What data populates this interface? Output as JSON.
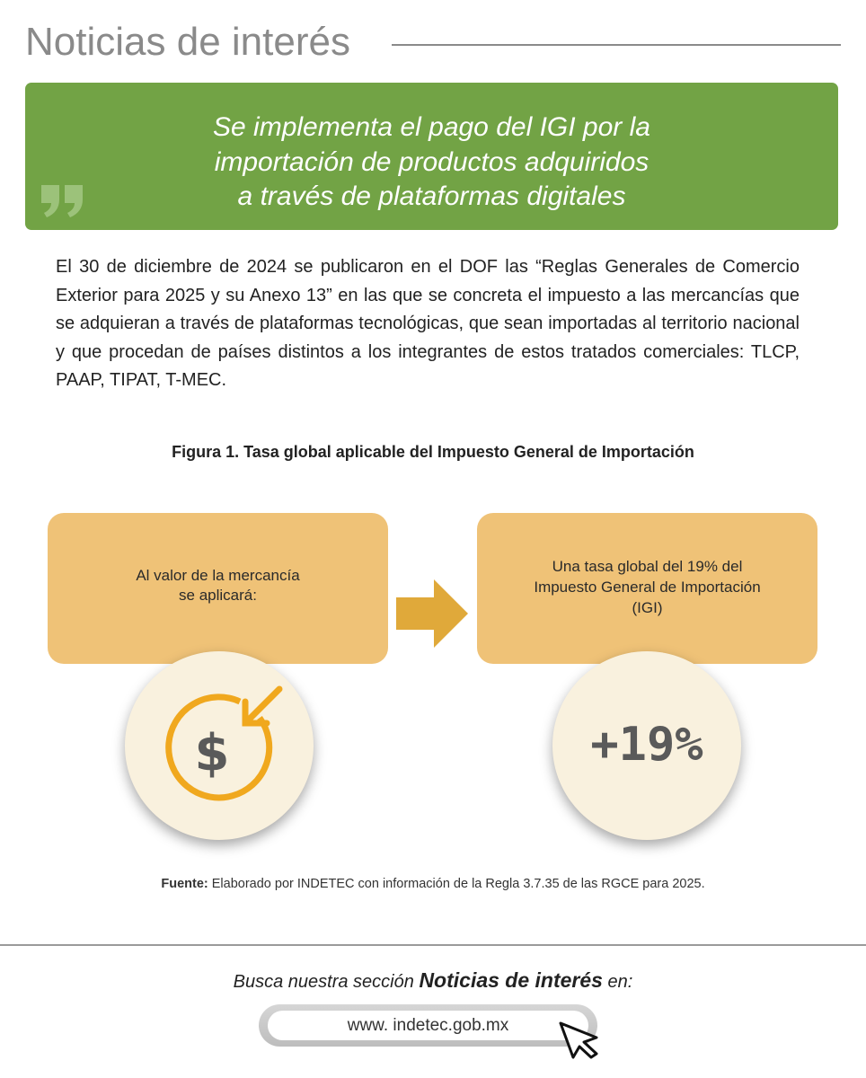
{
  "header": {
    "title": "Noticias de interés"
  },
  "banner": {
    "lines": [
      "Se implementa el pago del IGI por la",
      "importación de productos adquiridos",
      "a través de plataformas digitales"
    ]
  },
  "body": {
    "paragraph": "El 30 de diciembre de 2024 se publicaron en el DOF las “Reglas Generales de Comercio Exterior para 2025 y su Anexo 13” en las que se concreta el impuesto a las mercancías que se adquieran a través de plataformas tecnológicas, que sean importadas al territorio nacional y que procedan de países distintos a los integrantes de estos tratados comerciales: TLCP, PAAP, TIPAT, T-MEC."
  },
  "figure": {
    "caption": "Figura 1. Tasa global aplicable del Impuesto General de Importación",
    "left_box": {
      "lines": [
        "Al valor de la mercancía",
        "se aplicará:"
      ]
    },
    "right_box": {
      "lines": [
        "Una tasa global del 19% del",
        "Impuesto General de Importación",
        "(IGI)"
      ],
      "circle_text": "+19%"
    },
    "source": {
      "label": "Fuente:",
      "text": "Elaborado por INDETEC con información de la Regla 3.7.35 de las RGCE para 2025."
    }
  },
  "footer": {
    "prompt": "Busca nuestra sección",
    "section": "Noticias de interés",
    "suffix": "en:",
    "url": "www. indetec.gob.mx"
  }
}
